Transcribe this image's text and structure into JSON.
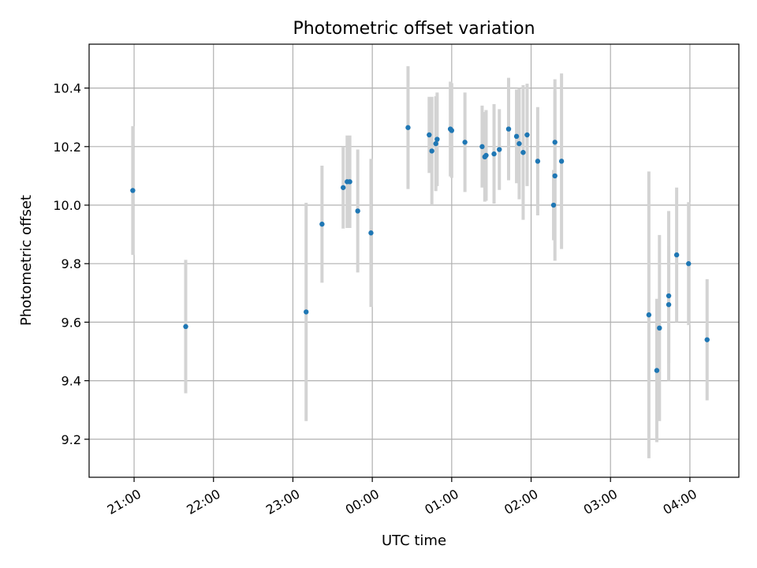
{
  "chart_data": {
    "type": "scatter",
    "title": "Photometric offset variation",
    "xlabel": "UTC time",
    "ylabel": "Photometric offset",
    "x_ticks": [
      {
        "value": "20:59",
        "label": "21:00"
      },
      {
        "value": "21:59",
        "label": "22:00"
      },
      {
        "value": "22:59",
        "label": "23:00"
      },
      {
        "value": "23:59",
        "label": "00:00"
      },
      {
        "value": "24:59",
        "label": "01:00"
      },
      {
        "value": "25:59",
        "label": "02:00"
      },
      {
        "value": "26:59",
        "label": "03:00"
      },
      {
        "value": "27:59",
        "label": "04:00"
      }
    ],
    "y_ticks": [
      9.2,
      9.4,
      9.6,
      9.8,
      10.0,
      10.2,
      10.4
    ],
    "xlim": [
      "20:25",
      "28:36"
    ],
    "ylim": [
      9.07,
      10.55
    ],
    "grid": true,
    "colors": {
      "point": "#1f77b4",
      "errorbar": "#d3d3d3"
    },
    "points": [
      {
        "x": "20:58",
        "y": 10.05,
        "err": 0.22
      },
      {
        "x": "21:38",
        "y": 9.585,
        "err": 0.228
      },
      {
        "x": "23:09",
        "y": 9.635,
        "err": 0.373
      },
      {
        "x": "23:21",
        "y": 9.935,
        "err": 0.2
      },
      {
        "x": "23:37",
        "y": 10.06,
        "err": 0.14
      },
      {
        "x": "23:40",
        "y": 10.08,
        "err": 0.158
      },
      {
        "x": "23:42",
        "y": 10.08,
        "err": 0.158
      },
      {
        "x": "23:48",
        "y": 9.98,
        "err": 0.21
      },
      {
        "x": "23:58",
        "y": 9.905,
        "err": 0.253
      },
      {
        "x": "24:26",
        "y": 10.265,
        "err": 0.21
      },
      {
        "x": "24:42",
        "y": 10.24,
        "err": 0.13
      },
      {
        "x": "24:44",
        "y": 10.185,
        "err": 0.185
      },
      {
        "x": "24:47",
        "y": 10.21,
        "err": 0.162
      },
      {
        "x": "24:48",
        "y": 10.225,
        "err": 0.16
      },
      {
        "x": "24:58",
        "y": 10.26,
        "err": 0.162
      },
      {
        "x": "24:59",
        "y": 10.255,
        "err": 0.162
      },
      {
        "x": "25:09",
        "y": 10.215,
        "err": 0.17
      },
      {
        "x": "25:22",
        "y": 10.2,
        "err": 0.14
      },
      {
        "x": "25:24",
        "y": 10.165,
        "err": 0.153
      },
      {
        "x": "25:25",
        "y": 10.17,
        "err": 0.155
      },
      {
        "x": "25:31",
        "y": 10.175,
        "err": 0.17
      },
      {
        "x": "25:35",
        "y": 10.19,
        "err": 0.138
      },
      {
        "x": "25:42",
        "y": 10.26,
        "err": 0.175
      },
      {
        "x": "25:48",
        "y": 10.235,
        "err": 0.16
      },
      {
        "x": "25:50",
        "y": 10.21,
        "err": 0.19
      },
      {
        "x": "25:53",
        "y": 10.18,
        "err": 0.23
      },
      {
        "x": "25:56",
        "y": 10.24,
        "err": 0.175
      },
      {
        "x": "26:04",
        "y": 10.15,
        "err": 0.185
      },
      {
        "x": "26:16",
        "y": 10.0,
        "err": 0.12
      },
      {
        "x": "26:17",
        "y": 10.1,
        "err": 0.29
      },
      {
        "x": "26:17",
        "y": 10.215,
        "err": 0.215
      },
      {
        "x": "26:22",
        "y": 10.15,
        "err": 0.3
      },
      {
        "x": "27:28",
        "y": 9.625,
        "err": 0.49
      },
      {
        "x": "27:34",
        "y": 9.435,
        "err": 0.245
      },
      {
        "x": "27:36",
        "y": 9.58,
        "err": 0.318
      },
      {
        "x": "27:43",
        "y": 9.69,
        "err": 0.29
      },
      {
        "x": "27:43",
        "y": 9.66,
        "err": 0.2
      },
      {
        "x": "27:49",
        "y": 9.83,
        "err": 0.23
      },
      {
        "x": "27:58",
        "y": 9.8,
        "err": 0.21
      },
      {
        "x": "28:12",
        "y": 9.54,
        "err": 0.207
      }
    ]
  }
}
